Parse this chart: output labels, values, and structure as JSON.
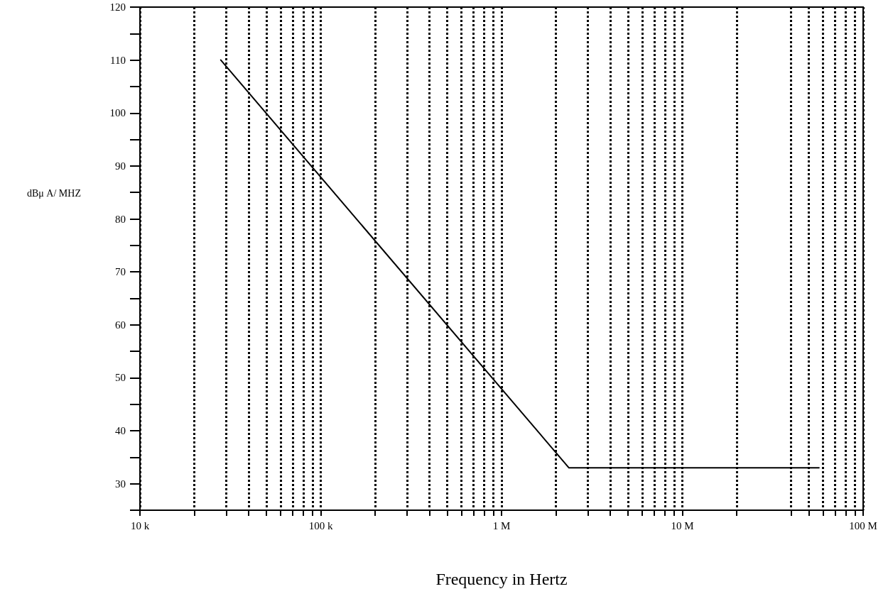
{
  "chart_data": {
    "type": "line",
    "xlabel": "Frequency in Hertz",
    "ylabel": "dBμ A/ MHZ",
    "series": [
      {
        "color": "#000000",
        "x": [
          28000,
          2360000,
          57000000
        ],
        "values": [
          110,
          33,
          33
        ]
      }
    ],
    "log": "x",
    "xlim": [
      10000,
      100000000
    ],
    "xticks": [
      {
        "value": 10000,
        "label": "10 k"
      },
      {
        "value": 20000,
        "label": null
      },
      {
        "value": 30000,
        "label": null
      },
      {
        "value": 40000,
        "label": null
      },
      {
        "value": 50000,
        "label": null
      },
      {
        "value": 60000,
        "label": null
      },
      {
        "value": 70000,
        "label": null
      },
      {
        "value": 80000,
        "label": null
      },
      {
        "value": 90000,
        "label": null
      },
      {
        "value": 100000,
        "label": "100 k"
      },
      {
        "value": 200000,
        "label": null
      },
      {
        "value": 300000,
        "label": null
      },
      {
        "value": 400000,
        "label": null
      },
      {
        "value": 500000,
        "label": null
      },
      {
        "value": 600000,
        "label": null
      },
      {
        "value": 700000,
        "label": null
      },
      {
        "value": 800000,
        "label": null
      },
      {
        "value": 900000,
        "label": null
      },
      {
        "value": 1000000,
        "label": "1 M"
      },
      {
        "value": 2000000,
        "label": null
      },
      {
        "value": 3000000,
        "label": null
      },
      {
        "value": 4000000,
        "label": null
      },
      {
        "value": 5000000,
        "label": null
      },
      {
        "value": 6000000,
        "label": null
      },
      {
        "value": 7000000,
        "label": null
      },
      {
        "value": 8000000,
        "label": null
      },
      {
        "value": 9000000,
        "label": null
      },
      {
        "value": 10000000,
        "label": "10 M"
      },
      {
        "value": 20000000,
        "label": null
      },
      {
        "value": 40000000,
        "label": null
      },
      {
        "value": 50000000,
        "label": null
      },
      {
        "value": 60000000,
        "label": null
      },
      {
        "value": 70000000,
        "label": null
      },
      {
        "value": 80000000,
        "label": null
      },
      {
        "value": 90000000,
        "label": null
      },
      {
        "value": 100000000,
        "label": "100 M"
      }
    ],
    "ylim": [
      25,
      120
    ],
    "yticks": [
      {
        "value": 25,
        "label": null
      },
      30,
      {
        "value": 35,
        "label": null
      },
      40,
      {
        "value": 45,
        "label": null
      },
      50,
      {
        "value": 55,
        "label": null
      },
      60,
      {
        "value": 65,
        "label": null
      },
      70,
      {
        "value": 75,
        "label": null
      },
      80,
      {
        "value": 85,
        "label": null
      },
      90,
      {
        "value": 95,
        "label": null
      },
      100,
      {
        "value": 105,
        "label": null
      },
      110,
      {
        "value": 115,
        "label": null
      },
      120
    ],
    "grid": "x",
    "marker": "none",
    "line_style": "solid"
  }
}
